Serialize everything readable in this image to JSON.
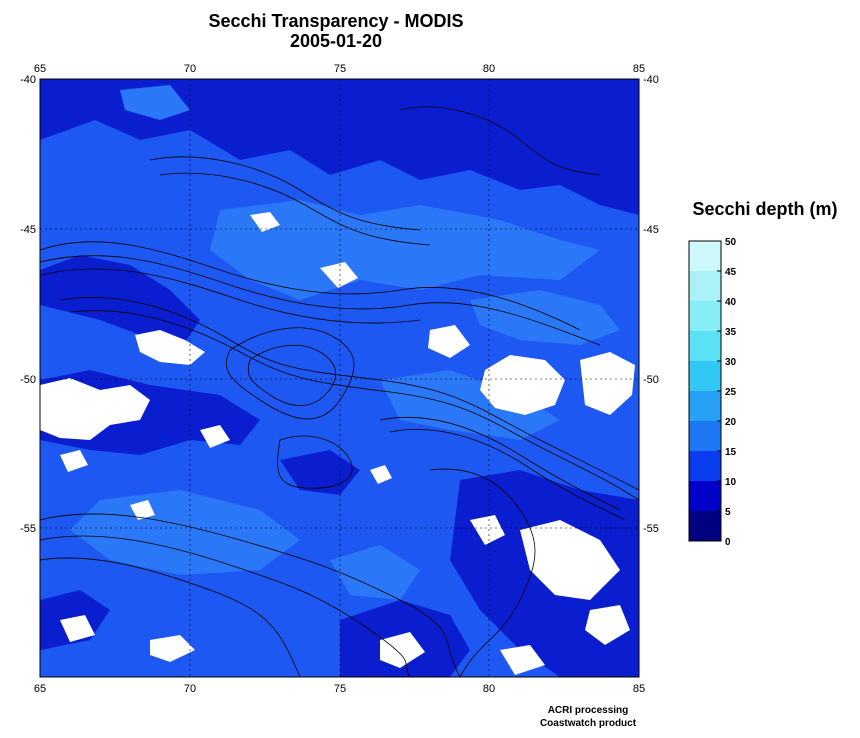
{
  "title": {
    "line1": "Secchi Transparency - MODIS",
    "line2": "2005-01-20"
  },
  "map": {
    "x_ticks": [
      "65",
      "70",
      "75",
      "80",
      "85"
    ],
    "y_ticks": [
      "-40",
      "-45",
      "-50",
      "-55"
    ],
    "x_range": [
      65,
      85
    ],
    "y_range": [
      -60,
      -40
    ],
    "grid": "dotted",
    "colors": {
      "deep": "#0a1ecf",
      "mid": "#1d58f2",
      "light": "#2a78f8",
      "cloud": "#ffffff",
      "contour": "#000000"
    }
  },
  "colorbar": {
    "title": "Secchi depth (m)",
    "ticks": [
      "50",
      "45",
      "40",
      "35",
      "30",
      "25",
      "20",
      "15",
      "10",
      "5",
      "0"
    ],
    "range": [
      0,
      50
    ],
    "colors": [
      "#000080",
      "#0000c8",
      "#0a3cf0",
      "#1e78f5",
      "#28a0f5",
      "#32c8f5",
      "#5ae1f5",
      "#87eef7",
      "#aaf2f7",
      "#cdf8fa"
    ]
  },
  "credits": {
    "line1": "ACRI processing",
    "line2": "Coastwatch product"
  }
}
